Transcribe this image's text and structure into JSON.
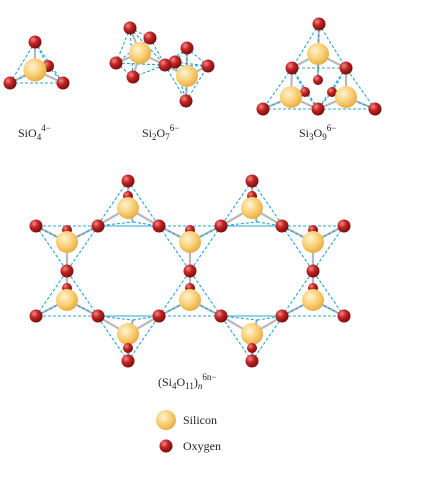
{
  "colors": {
    "silicon": "#f6c35e",
    "silicon_light": "#fff3d2",
    "oxygen": "#b01818",
    "oxygen_light": "#ef8a8a",
    "edge_dashed": "#2aa4d6",
    "bond": "#b9b9b9"
  },
  "labels": {
    "sio4": {
      "base": "SiO",
      "sub1": "4",
      "sup": "4−"
    },
    "si2o7": {
      "base1": "Si",
      "sub1": "2",
      "base2": "O",
      "sub2": "7",
      "sup": "6−"
    },
    "si3o9": {
      "base1": "Si",
      "sub1": "3",
      "base2": "O",
      "sub2": "9",
      "sup": "6−"
    },
    "chain": {
      "open": "(Si",
      "sub1": "4",
      "mid": "O",
      "sub2": "11",
      "close": ")",
      "subn": "n",
      "sup": "6n−"
    }
  },
  "legend": {
    "silicon": "Silicon",
    "oxygen": "Oxygen"
  }
}
